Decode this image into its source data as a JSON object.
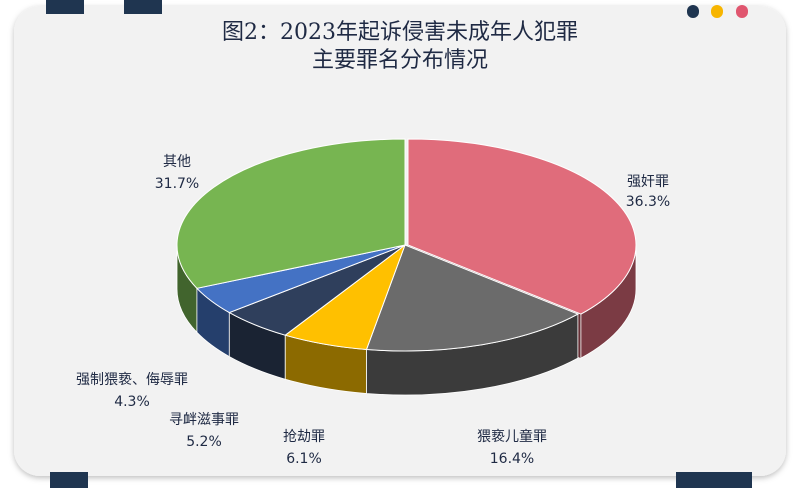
{
  "colors": {
    "background": "#ffffff",
    "card": "#f2f2f2",
    "navy": "#1f3550",
    "dot_navy": "#1f3550",
    "dot_yellow": "#f7b500",
    "dot_pink": "#e0566f"
  },
  "icons": [
    "dot-navy-icon",
    "dot-yellow-icon",
    "dot-pink-icon"
  ],
  "chart_data": {
    "type": "pie",
    "title_lines": [
      "图2：2023年起诉侵害未成年人犯罪",
      "主要罪名分布情况"
    ],
    "slices": [
      {
        "name": "强奸罪",
        "value": 36.3,
        "percent_label": "36.3%",
        "color": "#e06c7b"
      },
      {
        "name": "猥亵儿童罪",
        "value": 16.4,
        "percent_label": "16.4%",
        "color": "#6b6b6b"
      },
      {
        "name": "抢劫罪",
        "value": 6.1,
        "percent_label": "6.1%",
        "color": "#ffc000"
      },
      {
        "name": "寻衅滋事罪",
        "value": 5.2,
        "percent_label": "5.2%",
        "color": "#2f3f5c"
      },
      {
        "name": "强制猥亵、侮辱罪",
        "value": 4.3,
        "percent_label": "4.3%",
        "color": "#4472c4"
      },
      {
        "name": "其他",
        "value": 31.7,
        "percent_label": "31.7%",
        "color": "#77b551"
      }
    ],
    "legend": "none",
    "style": "3d-exploded"
  }
}
